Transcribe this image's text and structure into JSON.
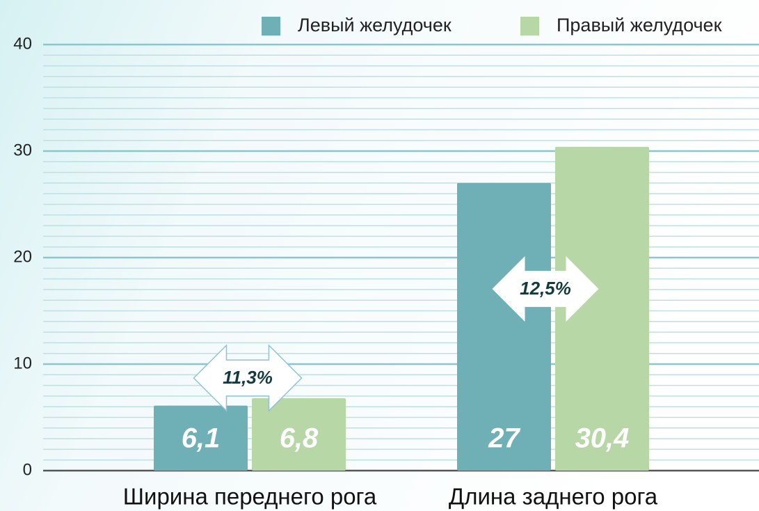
{
  "chart_data": {
    "type": "bar",
    "categories": [
      "Ширина переднего рога",
      "Длина заднего рога"
    ],
    "series": [
      {
        "name": "Левый желудочек",
        "color": "#6fb0b6",
        "values": [
          6.1,
          27
        ],
        "value_labels": [
          "6,1",
          "27"
        ]
      },
      {
        "name": "Правый желудочек",
        "color": "#b7d7a6",
        "values": [
          6.8,
          30.4
        ],
        "value_labels": [
          "6,8",
          "30,4"
        ]
      }
    ],
    "annotations": [
      "11,3%",
      "12,5%"
    ],
    "ylim": [
      0,
      40
    ],
    "yticks": [
      0,
      10,
      20,
      30,
      40
    ],
    "grid": true,
    "minor_grid_step": 1,
    "legend": "top"
  }
}
